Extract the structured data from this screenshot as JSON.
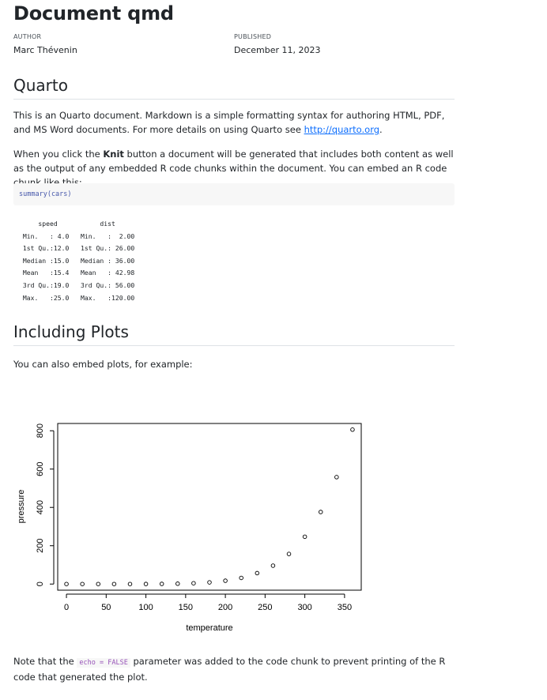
{
  "title": "Document qmd",
  "meta": {
    "author_label": "AUTHOR",
    "author": "Marc Thévenin",
    "published_label": "PUBLISHED",
    "published": "December 11, 2023"
  },
  "sections": {
    "quarto": {
      "heading": "Quarto",
      "para1_text": "This is an Quarto document. Markdown is a simple formatting syntax for authoring HTML, PDF, and MS Word documents. For more details on using Quarto see ",
      "para1_link": "http://quarto.org",
      "para1_end": ".",
      "para2_start": "When you click the ",
      "para2_bold": "Knit",
      "para2_end": " button a document will be generated that includes both content as well as the output of any embedded R code chunks within the document. You can embed an R code chunk like this:",
      "code": "summary(cars)",
      "output_lines": [
        "     speed           dist       ",
        " Min.   : 4.0   Min.   :  2.00  ",
        " 1st Qu.:12.0   1st Qu.: 26.00  ",
        " Median :15.0   Median : 36.00  ",
        " Mean   :15.4   Mean   : 42.98  ",
        " 3rd Qu.:19.0   3rd Qu.: 56.00  ",
        " Max.   :25.0   Max.   :120.00  "
      ]
    },
    "plots": {
      "heading": "Including Plots",
      "intro": "You can also embed plots, for example:",
      "note_start": "Note that the ",
      "note_code": "echo = FALSE",
      "note_end": " parameter was added to the code chunk to prevent printing of the R code that generated the plot."
    }
  },
  "chart_data": {
    "type": "scatter",
    "xlabel": "temperature",
    "ylabel": "pressure",
    "x": [
      0,
      20,
      40,
      60,
      80,
      100,
      120,
      140,
      160,
      180,
      200,
      220,
      240,
      260,
      280,
      300,
      320,
      340,
      360
    ],
    "y": [
      0.0002,
      0.0012,
      0.006,
      0.03,
      0.09,
      0.27,
      0.75,
      1.85,
      4.2,
      8.8,
      17.3,
      32.1,
      57,
      96,
      157,
      247,
      376,
      558,
      806
    ],
    "xlim": [
      -11,
      371
    ],
    "ylim": [
      -32,
      838
    ],
    "xticks": [
      0,
      50,
      100,
      150,
      200,
      250,
      300,
      350
    ],
    "yticks": [
      0,
      200,
      400,
      600,
      800
    ],
    "grid": false
  }
}
